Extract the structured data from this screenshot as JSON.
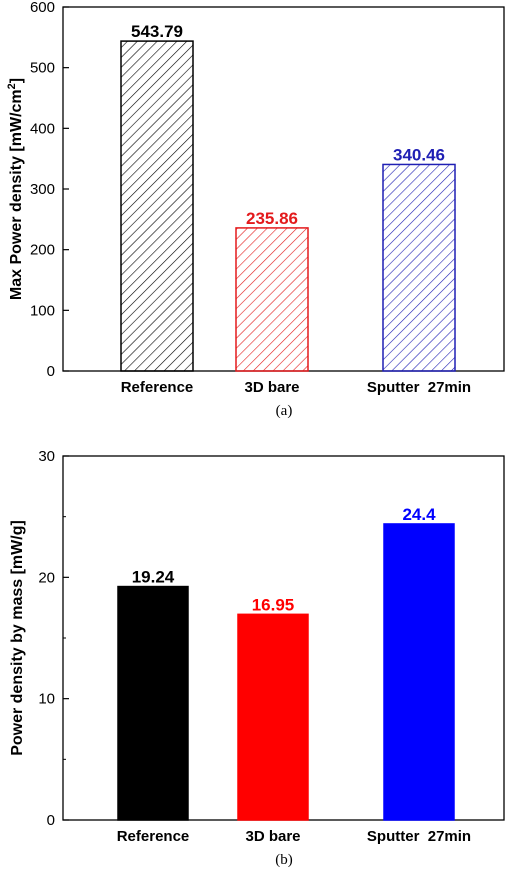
{
  "chart_data": [
    {
      "type": "bar",
      "categories": [
        "Reference",
        "3D bare",
        "Sputter  27min"
      ],
      "values": [
        543.79,
        235.86,
        340.46
      ],
      "value_labels": [
        "543.79",
        "235.86",
        "340.46"
      ],
      "colors": [
        "#000000",
        "#e31a1c",
        "#1f1fb4"
      ],
      "fill_style": "hatched",
      "ylabel": "Max Power density [mW/cm",
      "ylabel_superscript": "2",
      "ylabel_suffix": "]",
      "ylim": [
        0,
        600
      ],
      "yticks": [
        0,
        100,
        200,
        300,
        400,
        500,
        600
      ],
      "caption": "(a)"
    },
    {
      "type": "bar",
      "categories": [
        "Reference",
        "3D bare",
        "Sputter  27min"
      ],
      "values": [
        19.24,
        16.95,
        24.4
      ],
      "value_labels": [
        "19.24",
        "16.95",
        "24.4"
      ],
      "colors": [
        "#000000",
        "#ff0000",
        "#0000ff"
      ],
      "fill_style": "solid",
      "ylabel": "Power density by mass [mW/g]",
      "ylim": [
        0,
        30
      ],
      "yticks": [
        0,
        10,
        20,
        30
      ],
      "minor_yticks": [
        5,
        15,
        25
      ],
      "caption": "(b)"
    }
  ]
}
